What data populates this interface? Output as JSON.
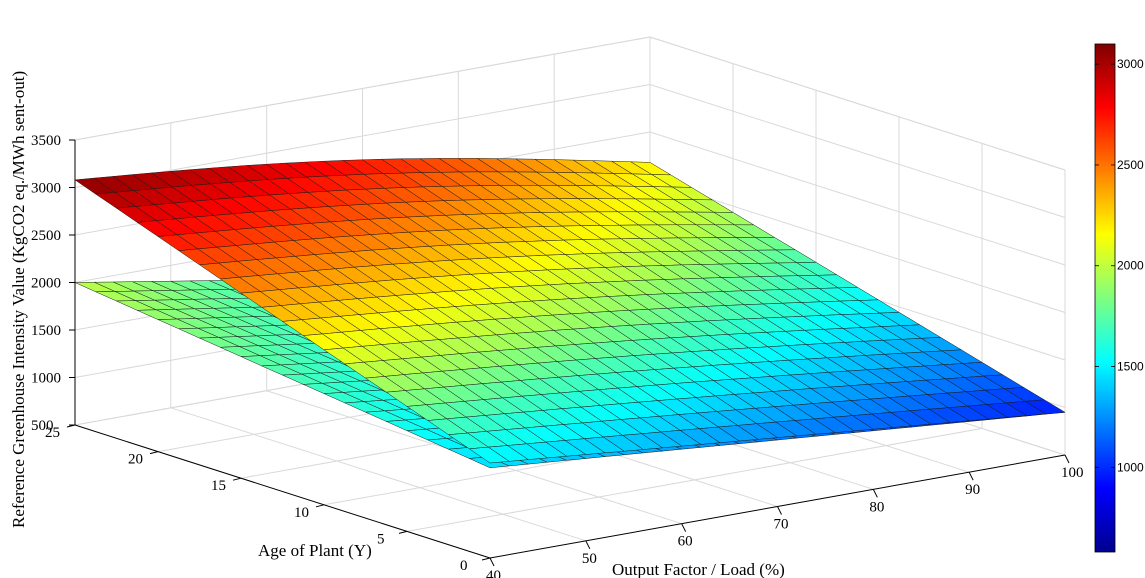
{
  "chart_data": {
    "type": "surface3d",
    "title": "",
    "xlabel": "Output Factor / Load (%)",
    "ylabel": "Age of Plant (Y)",
    "zlabel": "Reference Greenhouse Intensity Value (KgCO2 eq./MWh sent-out)",
    "xticks": [
      "40",
      "50",
      "60",
      "70",
      "80",
      "90",
      "100"
    ],
    "yticks": [
      "0",
      "5",
      "10",
      "15",
      "20",
      "25"
    ],
    "zticks": [
      "500",
      "1000",
      "1500",
      "2000",
      "2500",
      "3000",
      "3500"
    ],
    "xlim": [
      40,
      100
    ],
    "ylim": [
      0,
      25
    ],
    "zlim": [
      500,
      3500
    ],
    "colormap": "jet",
    "colorbar": {
      "ticks": [
        "1000",
        "1500",
        "2000",
        "2500",
        "3000"
      ],
      "range": [
        580,
        3100
      ]
    },
    "grid": true,
    "series": [
      {
        "corners": {
          "x40_y0": 1450,
          "x100_y0": 950,
          "x40_y25": 2000,
          "x100_y25": 1000
        }
      },
      {
        "corners": {
          "x40_y0": 1500,
          "x100_y0": 950,
          "x40_y25": 3080,
          "x100_y25": 2180
        }
      }
    ]
  }
}
